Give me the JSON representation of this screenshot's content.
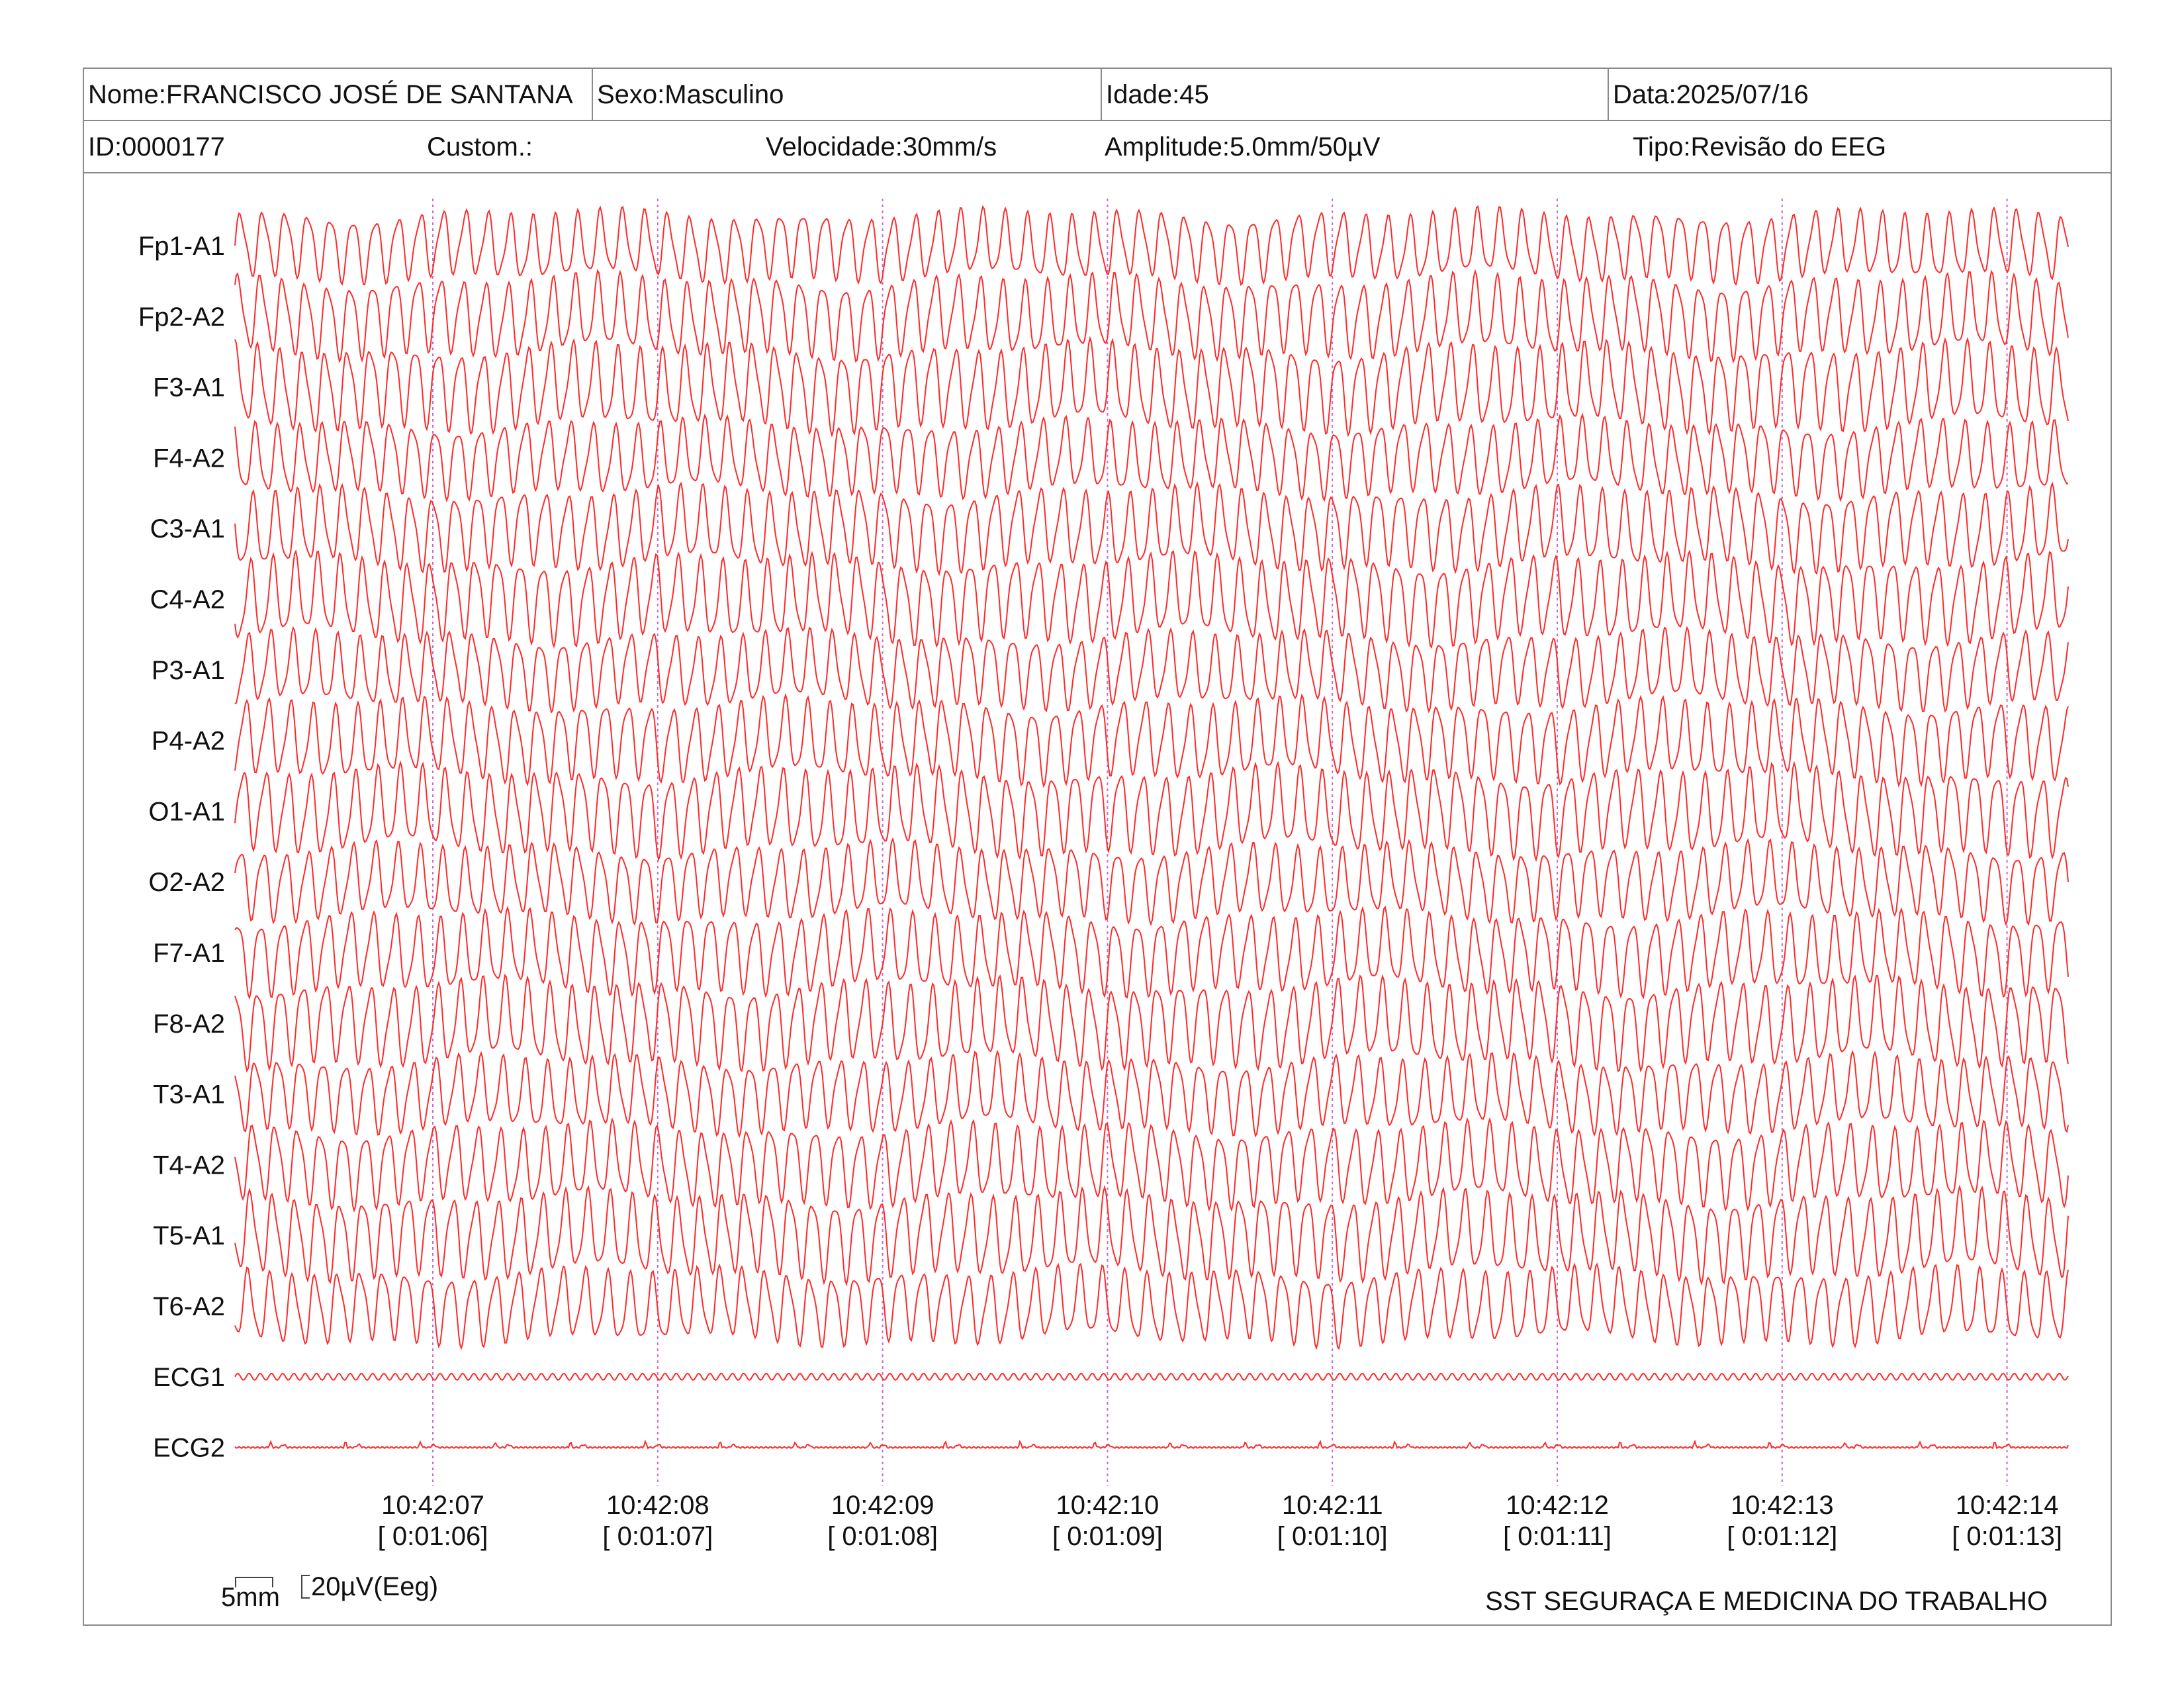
{
  "header": {
    "name": "Nome:FRANCISCO JOSÉ DE SANTANA",
    "sex": "Sexo:Masculino",
    "age": "Idade:45",
    "date": "Data:2025/07/16",
    "id": "ID:0000177",
    "custom": "Custom.:",
    "speed": "Velocidade:30mm/s",
    "amplitude": "Amplitude:5.0mm/50µV",
    "type": "Tipo:Revisão do EEG"
  },
  "footer": {
    "scale_length": "5mm",
    "scale_amplitude": "20µV(Eeg)",
    "company": "SST SEGURAÇA E MEDICINA DO TRABALHO"
  },
  "colors": {
    "trace": "#ff2a2a",
    "time_marker": "#cc66cc",
    "border": "#8a8a8a",
    "text": "#111111"
  },
  "chart_data": {
    "type": "line",
    "channels": [
      "Fp1-A1",
      "Fp2-A2",
      "F3-A1",
      "F4-A2",
      "C3-A1",
      "C4-A2",
      "P3-A1",
      "P4-A2",
      "O1-A1",
      "O2-A2",
      "F7-A1",
      "F8-A2",
      "T3-A1",
      "T4-A2",
      "T5-A1",
      "T6-A2",
      "ECG1",
      "ECG2"
    ],
    "time_markers": [
      {
        "time": "10:42:07",
        "elapsed": "[ 0:01:06]"
      },
      {
        "time": "10:42:08",
        "elapsed": "[ 0:01:07]"
      },
      {
        "time": "10:42:09",
        "elapsed": "[ 0:01:08]"
      },
      {
        "time": "10:42:10",
        "elapsed": "[ 0:01:09]"
      },
      {
        "time": "10:42:11",
        "elapsed": "[ 0:01:10]"
      },
      {
        "time": "10:42:12",
        "elapsed": "[ 0:01:11]"
      },
      {
        "time": "10:42:13",
        "elapsed": "[ 0:01:12]"
      },
      {
        "time": "10:42:14",
        "elapsed": "[ 0:01:13]"
      }
    ],
    "sweep_speed_mm_per_s": 30,
    "eeg_dominant_frequency_hz": 10,
    "ecg1_frequency_hz": 5,
    "ecg2_beats_per_second": 3,
    "grid": false
  }
}
